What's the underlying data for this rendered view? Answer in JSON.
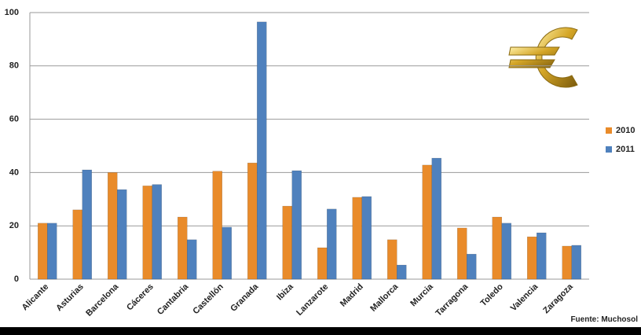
{
  "chart_data": {
    "type": "bar",
    "categories": [
      "Alicante",
      "Asturias",
      "Barcelona",
      "Cáceres",
      "Cantabria",
      "Castellón",
      "Granada",
      "Ibiza",
      "Lanzarote",
      "Madrid",
      "Mallorca",
      "Murcia",
      "Tarragona",
      "Toledo",
      "Valencia",
      "Zaragoza"
    ],
    "series": [
      {
        "name": "2010",
        "color": "#e98b2a",
        "values": [
          21,
          26,
          40,
          35,
          23.3,
          40.5,
          43.6,
          27.4,
          11.8,
          30.7,
          14.8,
          42.8,
          19.2,
          23.3,
          15.9,
          12.4
        ]
      },
      {
        "name": "2011",
        "color": "#4f81bd",
        "values": [
          21,
          41,
          33.6,
          35.5,
          14.8,
          19.5,
          96.5,
          40.7,
          26.3,
          31,
          5.3,
          45.4,
          9.4,
          21,
          17.4,
          12.7
        ]
      }
    ],
    "ylim": [
      0,
      100
    ],
    "yticks": [
      0,
      20,
      40,
      60,
      80,
      100
    ],
    "grid": true,
    "legend": "right",
    "source": "Fuente: Muchosol"
  }
}
